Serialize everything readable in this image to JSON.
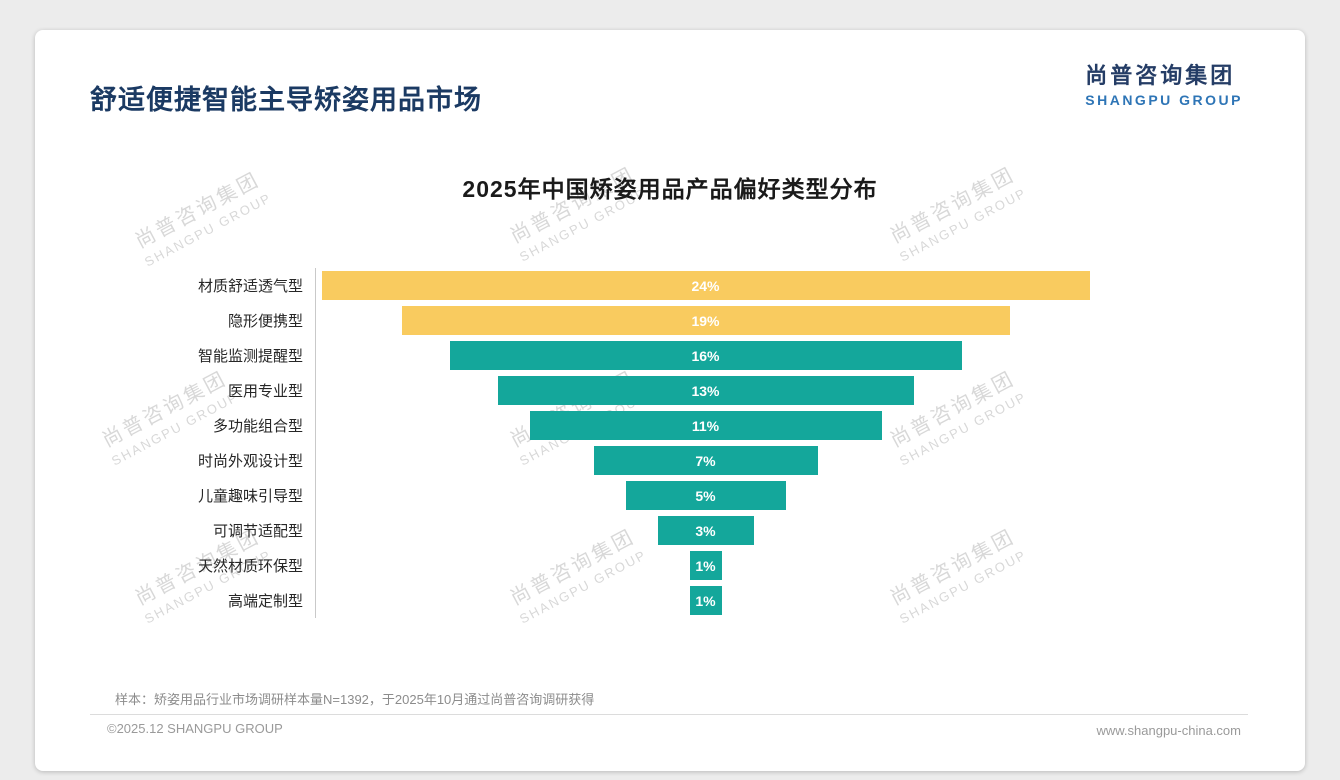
{
  "header": {
    "title": "舒适便捷智能主导矫姿用品市场",
    "logo_cn": "尚普咨询集团",
    "logo_en": "SHANGPU GROUP"
  },
  "watermark": {
    "line1": "尚普咨询集团",
    "line2": "SHANGPU GROUP"
  },
  "chart_data": {
    "type": "bar",
    "variant": "horizontal-centered-funnel",
    "title": "2025年中国矫姿用品产品偏好类型分布",
    "categories": [
      "材质舒适透气型",
      "隐形便携型",
      "智能监测提醒型",
      "医用专业型",
      "多功能组合型",
      "时尚外观设计型",
      "儿童趣味引导型",
      "可调节适配型",
      "天然材质环保型",
      "高端定制型"
    ],
    "values": [
      24,
      19,
      16,
      13,
      11,
      7,
      5,
      3,
      1,
      1
    ],
    "unit": "%",
    "xlim": [
      0,
      24
    ],
    "grid": false,
    "legend": "none",
    "colors": {
      "highlight_top2": "#F9CB5F",
      "primary": "#14A79B",
      "bar_label": "#ffffff",
      "axis_line": "#c9c9c9"
    }
  },
  "footer": {
    "note": "样本：矫姿用品行业市场调研样本量N=1392，于2025年10月通过尚普咨询调研获得",
    "copyright": "©2025.12 SHANGPU GROUP",
    "website": "www.shangpu-china.com"
  }
}
